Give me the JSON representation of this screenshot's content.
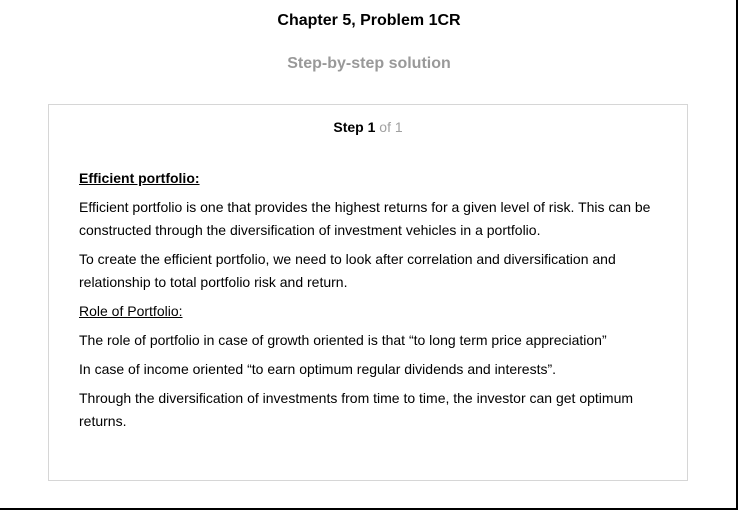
{
  "header": {
    "title": "Chapter 5, Problem 1CR",
    "subtitle": "Step-by-step solution"
  },
  "step": {
    "word": "Step",
    "number": "1",
    "of_text": "of 1",
    "heading": "Efficient portfolio:",
    "paragraph1": "Efficient portfolio is one that provides the highest returns for a given level of risk. This can be constructed through the diversification of investment vehicles in a portfolio.",
    "paragraph2": "To create the efficient portfolio, we need to look after correlation and diversification and relationship to total portfolio risk and return.",
    "subheading": "Role of Portfolio:",
    "paragraph3": "The role of portfolio in case of growth oriented is that “to long term price appreciation”",
    "paragraph4": "In case of income oriented “to earn optimum regular dividends and interests”.",
    "paragraph5": "Through the diversification of investments from time to time, the investor can get optimum returns."
  }
}
